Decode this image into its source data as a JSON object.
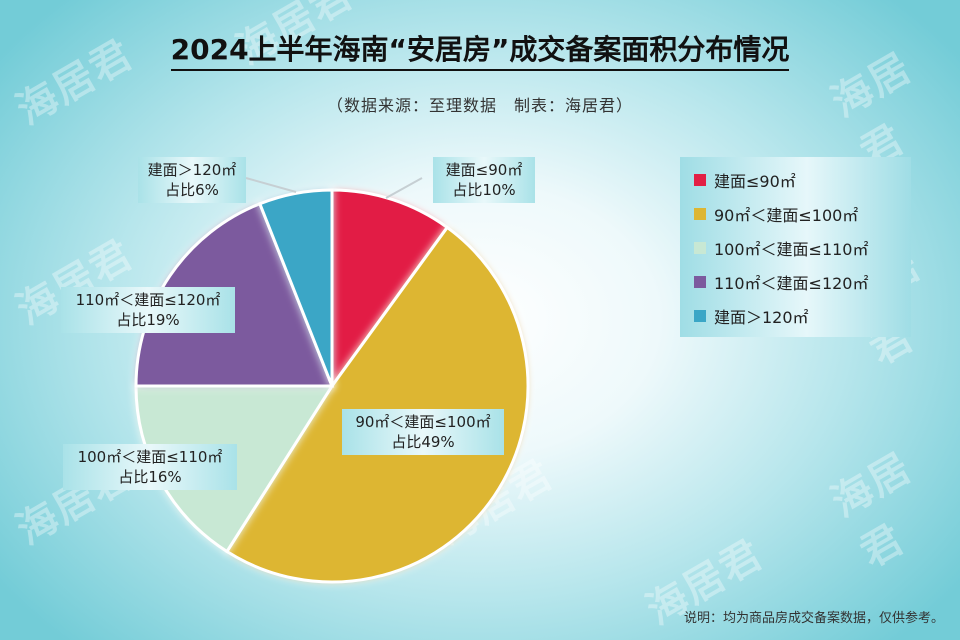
{
  "title": "2024上半年海南“安居房”成交备案面积分布情况",
  "subtitle": "（数据来源：至理数据　制表：海居君）",
  "watermark": "海居君",
  "footnote": "说明：均为商品房成交备案数据，仅供参考。",
  "chart_data": {
    "type": "pie",
    "title": "2024上半年海南“安居房”成交备案面积分布情况",
    "categories": [
      "建面≤90㎡",
      "90㎡＜建面≤100㎡",
      "100㎡＜建面≤110㎡",
      "110㎡＜建面≤120㎡",
      "建面＞120㎡"
    ],
    "values": [
      10,
      49,
      16,
      19,
      6
    ],
    "unit": "%",
    "colors": [
      "#e21f44",
      "#ddb633",
      "#c8e8d4",
      "#7c5a9e",
      "#3aa6c6"
    ],
    "legend_position": "right",
    "data_labels": [
      {
        "name": "建面≤90㎡",
        "value": "占比10%"
      },
      {
        "name": "90㎡＜建面≤100㎡",
        "value": "占比49%"
      },
      {
        "name": "100㎡＜建面≤110㎡",
        "value": "占比16%"
      },
      {
        "name": "110㎡＜建面≤120㎡",
        "value": "占比19%"
      },
      {
        "name": "建面＞120㎡",
        "value": "占比6%"
      }
    ]
  }
}
